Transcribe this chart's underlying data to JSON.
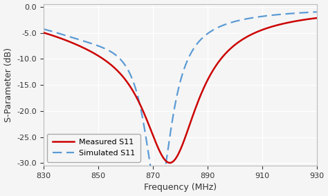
{
  "title": "",
  "xlabel": "Frequency (MHz)",
  "ylabel": "S-Parameter (dB)",
  "xlim": [
    830,
    930
  ],
  "ylim": [
    -30.5,
    0.5
  ],
  "xticks": [
    830,
    850,
    870,
    890,
    910,
    930
  ],
  "yticks": [
    0.0,
    -5.0,
    -10.0,
    -15.0,
    -20.0,
    -25.0,
    -30.0
  ],
  "measured_color": "#cc0000",
  "simulated_color": "#5b9bd5",
  "measured_label": "Measured S11",
  "simulated_label": "Simulated S11",
  "f0_measured": 876.5,
  "depth_measured": -26.3,
  "bw_measured": 24.0,
  "f0_simulated": 872.0,
  "depth_simulated": -33.0,
  "bw_simulated": 12.0,
  "background_color": "#f5f5f5",
  "grid_color": "#ffffff",
  "legend_loc": "lower left"
}
